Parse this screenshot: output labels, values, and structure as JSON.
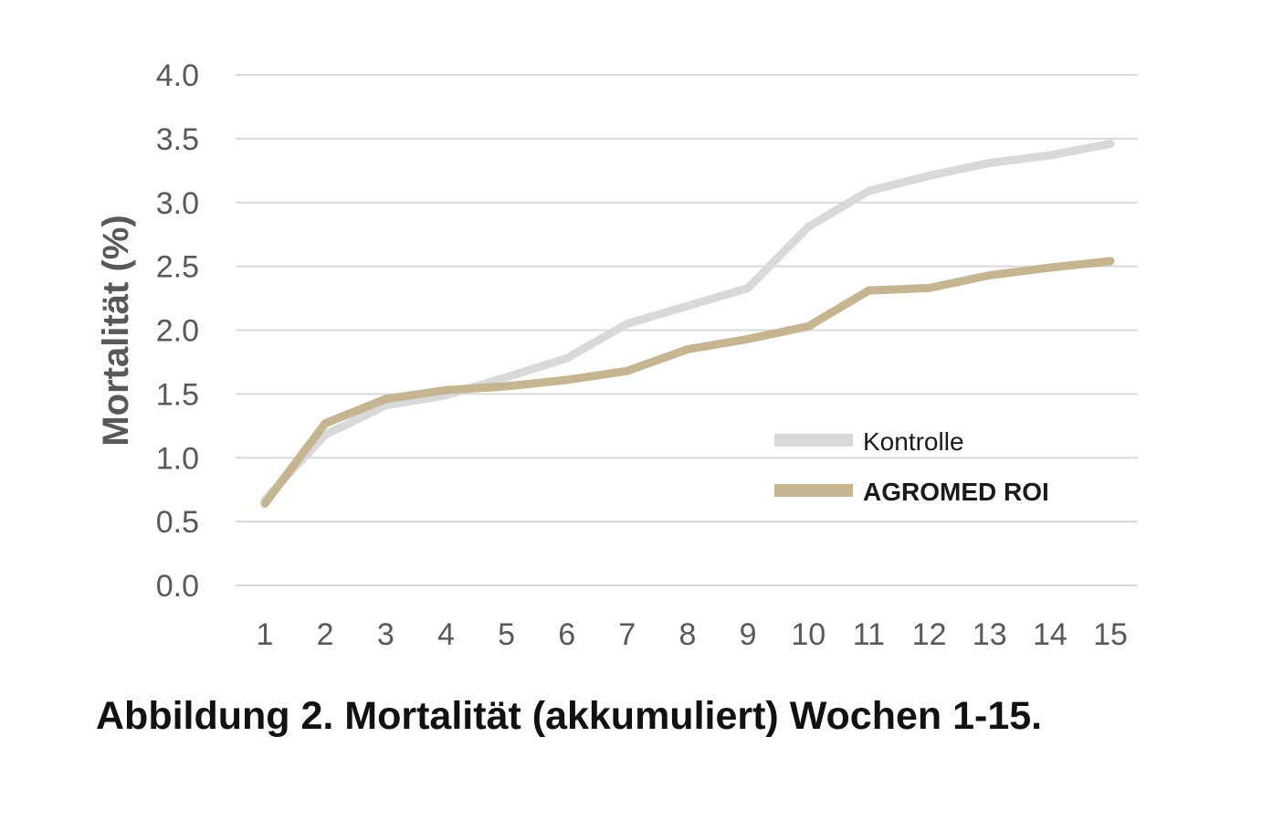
{
  "caption": "Abbildung 2. Mortalität (akkumuliert) Wochen 1-15.",
  "chart_data": {
    "type": "line",
    "title": "",
    "xlabel": "",
    "ylabel": "Mortalität (%)",
    "categories": [
      "1",
      "2",
      "3",
      "4",
      "5",
      "6",
      "7",
      "8",
      "9",
      "10",
      "11",
      "12",
      "13",
      "14",
      "15"
    ],
    "ylim": [
      0,
      4
    ],
    "yticks": [
      "0.0",
      "0.5",
      "1.0",
      "1.5",
      "2.0",
      "2.5",
      "3.0",
      "3.5",
      "4.0"
    ],
    "grid": true,
    "legend_position": "lower-right",
    "series": [
      {
        "name": "Kontrolle",
        "color": "#d9d9d9",
        "bold": false,
        "values": [
          0.67,
          1.18,
          1.41,
          1.49,
          1.63,
          1.78,
          2.05,
          2.19,
          2.33,
          2.81,
          3.09,
          3.21,
          3.31,
          3.37,
          3.46
        ]
      },
      {
        "name": "AGROMED ROI",
        "color": "#c6b591",
        "bold": true,
        "values": [
          0.64,
          1.27,
          1.46,
          1.53,
          1.56,
          1.61,
          1.68,
          1.85,
          1.93,
          2.03,
          2.31,
          2.33,
          2.43,
          2.49,
          2.54
        ]
      }
    ]
  }
}
